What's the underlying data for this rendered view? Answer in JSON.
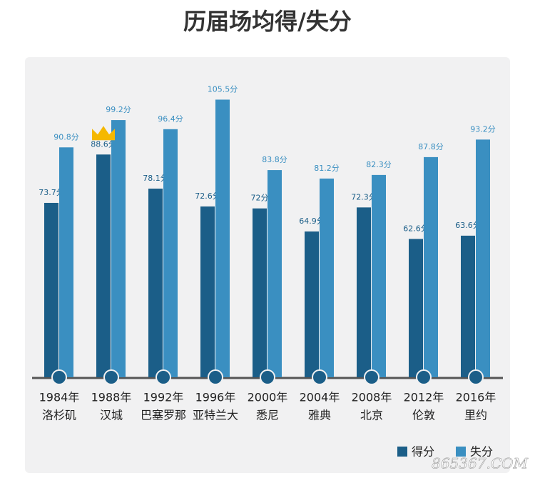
{
  "chart_data": {
    "type": "bar",
    "title": "历届场均得/失分",
    "categories": [
      [
        "1984年",
        "洛杉矶"
      ],
      [
        "1988年",
        "汉城"
      ],
      [
        "1992年",
        "巴塞罗那"
      ],
      [
        "1996年",
        "亚特兰大"
      ],
      [
        "2000年",
        "悉尼"
      ],
      [
        "2004年",
        "雅典"
      ],
      [
        "2008年",
        "北京"
      ],
      [
        "2012年",
        "伦敦"
      ],
      [
        "2016年",
        "里约"
      ]
    ],
    "series": [
      {
        "name": "得分",
        "color": "#1b5e88",
        "values": [
          73.7,
          88.6,
          78.1,
          72.6,
          72,
          64.9,
          72.3,
          62.6,
          63.6
        ],
        "value_labels": [
          "73.7分",
          "88.6分",
          "78.1分",
          "72.6分",
          "72分",
          "64.9分",
          "72.3分",
          "62.6分",
          "63.6分"
        ]
      },
      {
        "name": "失分",
        "color": "#3a8fc1",
        "values": [
          90.8,
          99.2,
          96.4,
          105.5,
          83.8,
          81.2,
          82.3,
          87.8,
          93.2
        ],
        "value_labels": [
          "90.8分",
          "99.2分",
          "96.4分",
          "105.5分",
          "83.8分",
          "81.2分",
          "82.3分",
          "87.8分",
          "93.2分"
        ]
      }
    ],
    "ylim": [
      20,
      110
    ],
    "legend": "bottom-right",
    "watermark": "865367.COM"
  }
}
